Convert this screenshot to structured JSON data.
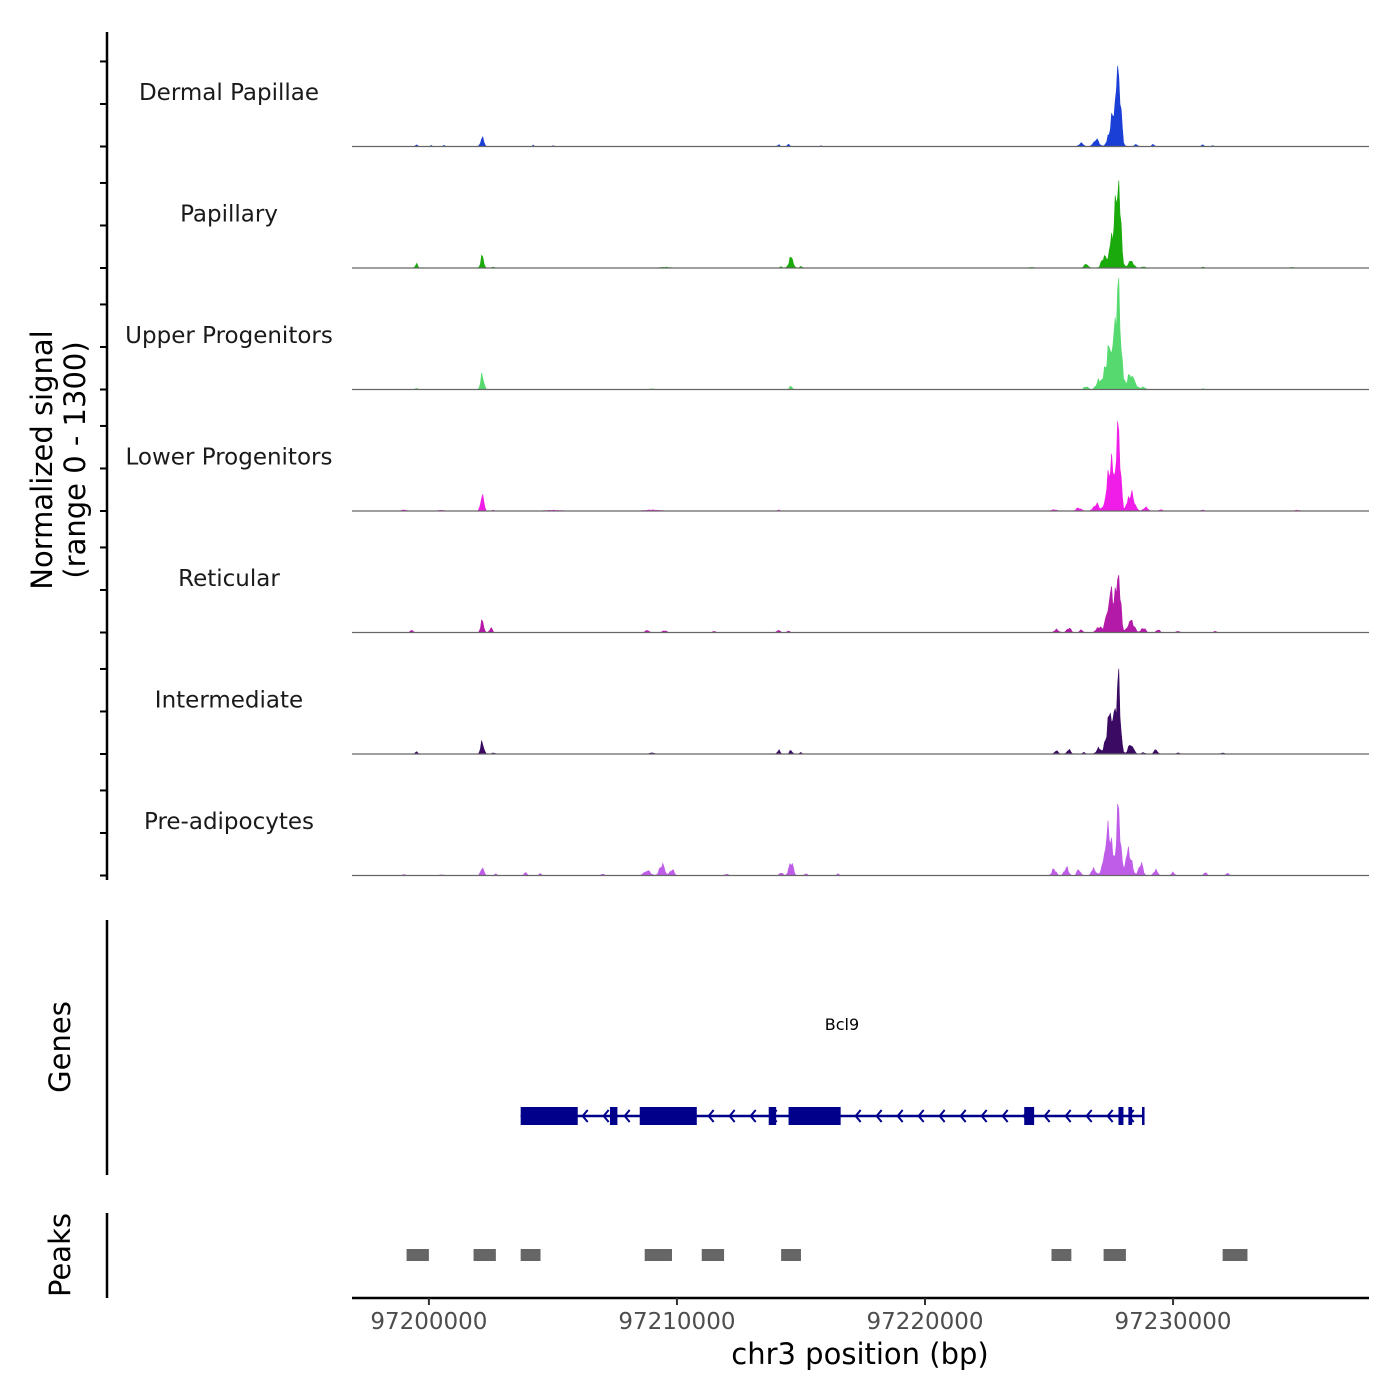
{
  "chart_data": {
    "type": "area",
    "title": "",
    "ylabel_line1": "Normalized signal",
    "ylabel_line2": "(range 0 - 1300)",
    "y_range": [
      0,
      1300
    ],
    "xlabel": "chr3 position (bp)",
    "xlim": [
      97196900,
      97237900
    ],
    "x_ticks": [
      97200000,
      97210000,
      97220000,
      97230000
    ],
    "x_tick_labels": [
      "97200000",
      "97210000",
      "97220000",
      "97230000"
    ],
    "series": [
      {
        "name": "Dermal Papillae",
        "color": "#1a3fd6",
        "peaks": [
          [
            97199500,
            40,
            40
          ],
          [
            97200100,
            30,
            30
          ],
          [
            97200600,
            25,
            30
          ],
          [
            97202150,
            200,
            60
          ],
          [
            97204200,
            25,
            30
          ],
          [
            97205000,
            20,
            30
          ],
          [
            97214100,
            40,
            40
          ],
          [
            97214500,
            50,
            40
          ],
          [
            97215800,
            20,
            30
          ],
          [
            97226300,
            70,
            80
          ],
          [
            97226900,
            150,
            100
          ],
          [
            97227600,
            600,
            150
          ],
          [
            97227800,
            1300,
            90
          ],
          [
            97228500,
            40,
            60
          ],
          [
            97229200,
            40,
            50
          ],
          [
            97231200,
            40,
            40
          ],
          [
            97231600,
            20,
            40
          ]
        ]
      },
      {
        "name": "Papillary",
        "color": "#1aaa0c",
        "peaks": [
          [
            97199500,
            80,
            50
          ],
          [
            97202150,
            230,
            60
          ],
          [
            97202600,
            20,
            40
          ],
          [
            97209500,
            15,
            200
          ],
          [
            97214200,
            30,
            40
          ],
          [
            97214600,
            230,
            80
          ],
          [
            97215000,
            30,
            50
          ],
          [
            97224300,
            15,
            80
          ],
          [
            97226500,
            80,
            80
          ],
          [
            97227200,
            200,
            90
          ],
          [
            97227600,
            700,
            150
          ],
          [
            97227800,
            1550,
            90
          ],
          [
            97228300,
            150,
            100
          ],
          [
            97228800,
            30,
            60
          ],
          [
            97231200,
            25,
            40
          ],
          [
            97234800,
            15,
            60
          ]
        ]
      },
      {
        "name": "Upper Progenitors",
        "color": "#56da6f",
        "peaks": [
          [
            97199500,
            25,
            40
          ],
          [
            97202150,
            320,
            60
          ],
          [
            97209000,
            15,
            80
          ],
          [
            97214600,
            70,
            50
          ],
          [
            97226500,
            60,
            80
          ],
          [
            97227000,
            150,
            100
          ],
          [
            97227500,
            900,
            200
          ],
          [
            97227800,
            1750,
            100
          ],
          [
            97228300,
            300,
            150
          ],
          [
            97228800,
            50,
            80
          ],
          [
            97231200,
            20,
            40
          ]
        ]
      },
      {
        "name": "Lower Progenitors",
        "color": "#f01ce8",
        "peaks": [
          [
            97199000,
            20,
            100
          ],
          [
            97200500,
            15,
            100
          ],
          [
            97202150,
            370,
            60
          ],
          [
            97202600,
            20,
            40
          ],
          [
            97205000,
            15,
            300
          ],
          [
            97209000,
            20,
            300
          ],
          [
            97214100,
            20,
            50
          ],
          [
            97225200,
            25,
            100
          ],
          [
            97226200,
            60,
            100
          ],
          [
            97226900,
            150,
            100
          ],
          [
            97227500,
            950,
            150
          ],
          [
            97227800,
            1550,
            80
          ],
          [
            97228300,
            350,
            130
          ],
          [
            97228900,
            80,
            80
          ],
          [
            97229500,
            30,
            60
          ],
          [
            97231200,
            20,
            60
          ],
          [
            97235000,
            15,
            100
          ]
        ]
      },
      {
        "name": "Reticular",
        "color": "#b31aa8",
        "peaks": [
          [
            97199300,
            50,
            50
          ],
          [
            97202150,
            230,
            60
          ],
          [
            97202500,
            100,
            50
          ],
          [
            97208800,
            40,
            80
          ],
          [
            97209500,
            40,
            70
          ],
          [
            97211500,
            30,
            50
          ],
          [
            97214100,
            60,
            50
          ],
          [
            97214500,
            40,
            40
          ],
          [
            97225300,
            60,
            80
          ],
          [
            97225800,
            90,
            80
          ],
          [
            97226300,
            50,
            60
          ],
          [
            97227000,
            120,
            90
          ],
          [
            97227500,
            800,
            150
          ],
          [
            97227800,
            1200,
            80
          ],
          [
            97228300,
            250,
            120
          ],
          [
            97228800,
            100,
            80
          ],
          [
            97229400,
            60,
            60
          ],
          [
            97230200,
            30,
            50
          ],
          [
            97231700,
            25,
            50
          ]
        ]
      },
      {
        "name": "Intermediate",
        "color": "#3b0b63",
        "peaks": [
          [
            97199500,
            40,
            50
          ],
          [
            97202150,
            250,
            60
          ],
          [
            97202600,
            30,
            40
          ],
          [
            97209000,
            25,
            80
          ],
          [
            97214100,
            80,
            50
          ],
          [
            97214600,
            80,
            50
          ],
          [
            97215000,
            30,
            40
          ],
          [
            97225300,
            80,
            60
          ],
          [
            97225800,
            90,
            70
          ],
          [
            97226400,
            30,
            50
          ],
          [
            97227000,
            120,
            80
          ],
          [
            97227500,
            900,
            150
          ],
          [
            97227800,
            1350,
            80
          ],
          [
            97228300,
            200,
            100
          ],
          [
            97228800,
            30,
            60
          ],
          [
            97229300,
            100,
            60
          ],
          [
            97230200,
            25,
            50
          ],
          [
            97232000,
            20,
            60
          ]
        ]
      },
      {
        "name": "Pre-adipocytes",
        "color": "#bf5ce8",
        "peaks": [
          [
            97199000,
            20,
            60
          ],
          [
            97200500,
            15,
            80
          ],
          [
            97202150,
            180,
            60
          ],
          [
            97202700,
            40,
            40
          ],
          [
            97203900,
            70,
            50
          ],
          [
            97204500,
            40,
            50
          ],
          [
            97207000,
            30,
            60
          ],
          [
            97208800,
            100,
            120
          ],
          [
            97209400,
            220,
            100
          ],
          [
            97209800,
            120,
            80
          ],
          [
            97212000,
            30,
            60
          ],
          [
            97214200,
            60,
            60
          ],
          [
            97214600,
            280,
            80
          ],
          [
            97215200,
            40,
            50
          ],
          [
            97216500,
            30,
            50
          ],
          [
            97225200,
            130,
            80
          ],
          [
            97225700,
            160,
            80
          ],
          [
            97226200,
            120,
            70
          ],
          [
            97226800,
            150,
            80
          ],
          [
            97227400,
            900,
            150
          ],
          [
            97227800,
            1300,
            80
          ],
          [
            97228200,
            500,
            120
          ],
          [
            97228700,
            250,
            80
          ],
          [
            97229300,
            120,
            70
          ],
          [
            97230000,
            60,
            60
          ],
          [
            97231300,
            70,
            50
          ],
          [
            97232200,
            40,
            60
          ]
        ]
      }
    ],
    "genes": [
      {
        "name": "Bcl9",
        "strand": "-",
        "start": 97203700,
        "end": 97228800,
        "exons": [
          [
            97203700,
            97206000
          ],
          [
            97207300,
            97207600
          ],
          [
            97208500,
            97210800
          ],
          [
            97213700,
            97214000
          ],
          [
            97214500,
            97216600
          ],
          [
            97224000,
            97224400
          ],
          [
            97227800,
            97228000
          ],
          [
            97228200,
            97228350
          ]
        ]
      }
    ],
    "peaks_track": [
      [
        97199100,
        97200000
      ],
      [
        97201800,
        97202700
      ],
      [
        97203700,
        97204500
      ],
      [
        97208700,
        97209800
      ],
      [
        97211000,
        97211900
      ],
      [
        97214200,
        97215000
      ],
      [
        97225100,
        97225900
      ],
      [
        97227200,
        97228100
      ],
      [
        97232000,
        97233000
      ]
    ],
    "track_titles": [
      "Genes",
      "Peaks"
    ]
  }
}
